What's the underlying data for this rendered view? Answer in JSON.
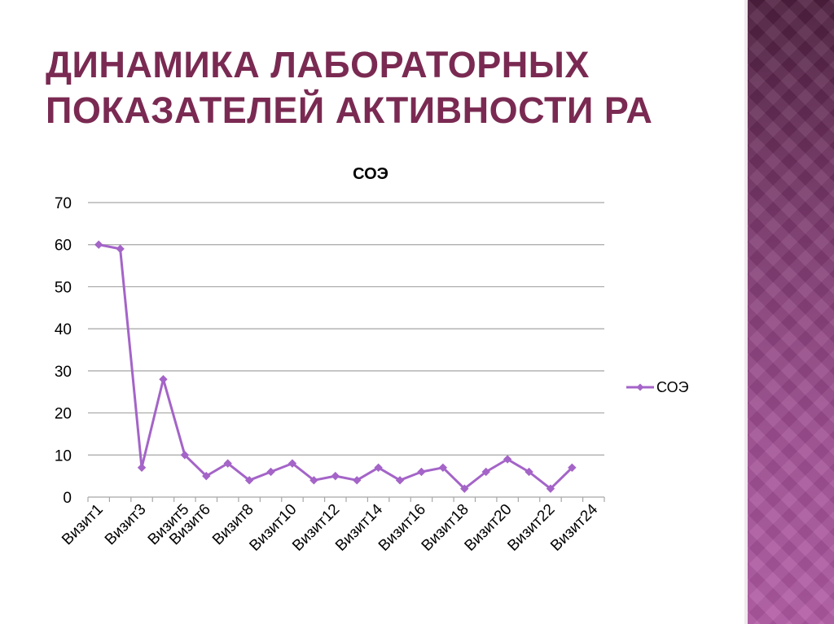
{
  "slide": {
    "title_line1": "Динамика лабораторных",
    "title_line2": "показателей активности РА"
  },
  "colors": {
    "title": "#7a2a52",
    "series": "#a464c8",
    "gridline": "#a6a6a6",
    "side_band_top": "#4e1f3f",
    "side_band_bottom": "#b15aa4"
  },
  "chart_data": {
    "type": "line",
    "title": "СОЭ",
    "xlabel": "",
    "ylabel": "",
    "ylim": [
      0,
      70
    ],
    "yticks": [
      0,
      10,
      20,
      30,
      40,
      50,
      60,
      70
    ],
    "grid": true,
    "legend_position": "right",
    "categories": [
      "Визит1",
      "Визит2",
      "Визит3",
      "Визит4",
      "Визит5",
      "Визит6",
      "Визит7",
      "Визит8",
      "Визит9",
      "Визит10",
      "Визит11",
      "Визит12",
      "Визит13",
      "Визит14",
      "Визит15",
      "Визит16",
      "Визит17",
      "Визит18",
      "Визит19",
      "Визит20",
      "Визит21",
      "Визит22",
      "Визит23",
      "Визит24"
    ],
    "visible_tick_labels": [
      "Визит1",
      "Визит3",
      "Визит5",
      "Визит6",
      "Визит8",
      "Визит10",
      "Визит12",
      "Визит14",
      "Визит16",
      "Визит18",
      "Визит20",
      "Визит22",
      "Визит24"
    ],
    "series": [
      {
        "name": "СОЭ",
        "values": [
          60,
          59,
          7,
          28,
          10,
          5,
          8,
          4,
          6,
          8,
          4,
          5,
          4,
          7,
          4,
          6,
          7,
          2,
          6,
          9,
          6,
          2,
          7,
          null
        ]
      }
    ]
  }
}
